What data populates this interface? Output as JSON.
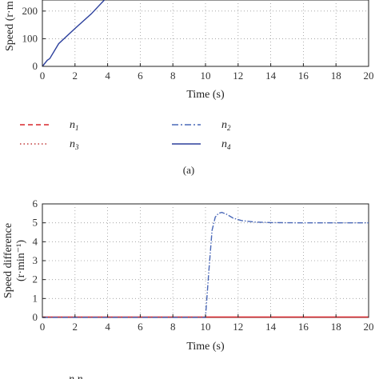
{
  "chart_data": [
    {
      "type": "line",
      "panel": "top",
      "xlabel": "Time (s)",
      "ylabel_visible": "Speed (r·m",
      "x_ticks": [
        "0",
        "2",
        "4",
        "6",
        "8",
        "10",
        "12",
        "14",
        "16",
        "18",
        "20"
      ],
      "y_ticks": [
        "0",
        "100",
        "200"
      ],
      "xlim": [
        0,
        20
      ],
      "ylim": [
        0,
        240
      ],
      "grid": true,
      "series": [
        {
          "name": "n4",
          "color": "#2b3f9c",
          "style": "solid",
          "x": [
            0.0,
            0.3,
            0.45,
            1.0,
            2.0,
            3.0,
            3.8
          ],
          "y": [
            0,
            22,
            28,
            82,
            137,
            190,
            240
          ]
        }
      ]
    },
    {
      "type": "line",
      "panel": "bottom",
      "xlabel": "Time (s)",
      "ylabel": "Speed difference (r·min⁻¹)",
      "x_ticks": [
        "0",
        "2",
        "4",
        "6",
        "8",
        "10",
        "12",
        "14",
        "16",
        "18",
        "20"
      ],
      "y_ticks": [
        "0",
        "1",
        "2",
        "3",
        "4",
        "5",
        "6"
      ],
      "xlim": [
        0,
        20
      ],
      "ylim": [
        0,
        6
      ],
      "grid": true,
      "series": [
        {
          "name": "red dashed",
          "color": "#d9262c",
          "style": "solid",
          "x": [
            0,
            20
          ],
          "y": [
            0.02,
            0.02
          ]
        },
        {
          "name": "blue dash-dot",
          "color": "#4a68b8",
          "style": "dashdot",
          "x": [
            0,
            10.0,
            10.2,
            10.4,
            10.6,
            10.8,
            11.0,
            11.3,
            11.7,
            12.2,
            13.0,
            14.0,
            16.0,
            20.0
          ],
          "y": [
            0,
            0,
            2.4,
            4.6,
            5.3,
            5.5,
            5.55,
            5.45,
            5.25,
            5.12,
            5.04,
            5.01,
            5.0,
            5.0
          ]
        }
      ]
    }
  ],
  "legend": {
    "items": [
      {
        "name": "n",
        "sub": "1",
        "color": "#d9262c",
        "dash": "6,4"
      },
      {
        "name": "n",
        "sub": "2",
        "color": "#4a68b8",
        "dash": "8,3,2,3"
      },
      {
        "name": "n",
        "sub": "3",
        "color": "#c23a3a",
        "dash": "1.5,3"
      },
      {
        "name": "n",
        "sub": "4",
        "color": "#2b3f9c",
        "dash": ""
      }
    ]
  },
  "labels": {
    "panel_a": "(a)",
    "top_xlabel": "Time (s)",
    "top_ylabel": "Speed (r·m",
    "bottom_xlabel": "Time (s)",
    "bottom_ylabel_line1": "Speed difference",
    "bottom_ylabel_line2": "(r·min⁻¹)"
  },
  "bottom_fragment": "n  n"
}
